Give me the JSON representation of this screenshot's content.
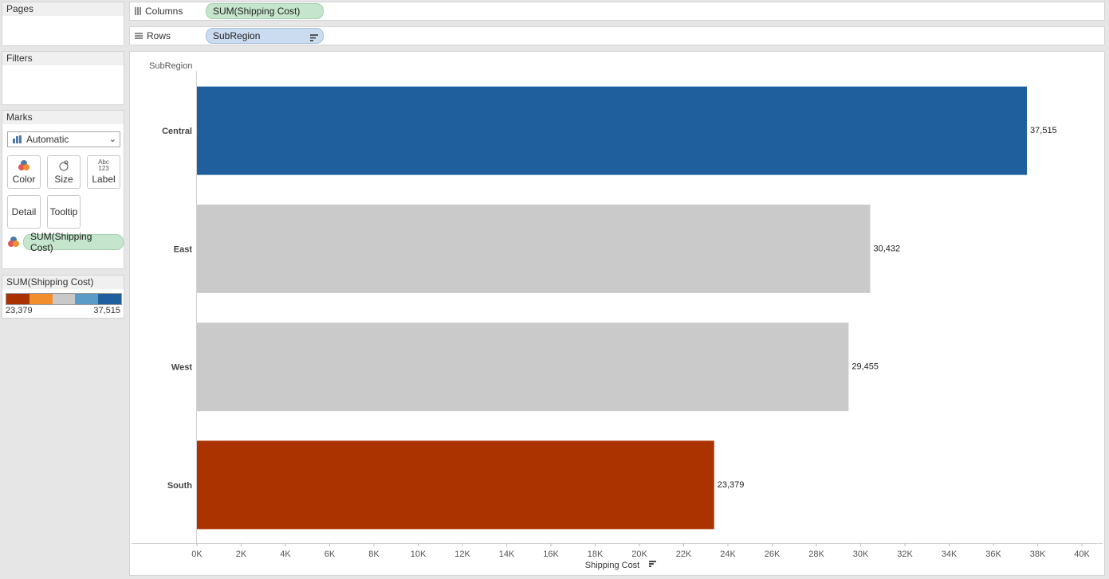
{
  "panels": {
    "pages_title": "Pages",
    "filters_title": "Filters",
    "marks_title": "Marks"
  },
  "marks": {
    "type": "Automatic",
    "buttons": {
      "color": "Color",
      "size": "Size",
      "label": "Label",
      "label_icon_top": "Abc",
      "label_icon_bottom": "123",
      "detail": "Detail",
      "tooltip": "Tooltip"
    },
    "color_pill": "SUM(Shipping Cost)"
  },
  "legend": {
    "title": "SUM(Shipping Cost)",
    "min": "23,379",
    "max": "37,515",
    "colors": [
      "#a83300",
      "#f28e2b",
      "#c9c9c9",
      "#5b9bc8",
      "#1f5f9e"
    ]
  },
  "shelves": {
    "columns_label": "Columns",
    "columns_pill": "SUM(Shipping Cost)",
    "rows_label": "Rows",
    "rows_pill": "SubRegion"
  },
  "chart_data": {
    "type": "bar",
    "orientation": "horizontal",
    "row_header": "SubRegion",
    "xlabel": "Shipping Cost",
    "categories": [
      "Central",
      "East",
      "West",
      "South"
    ],
    "values": [
      37515,
      30432,
      29455,
      23379
    ],
    "value_labels": [
      "37,515",
      "30,432",
      "29,455",
      "23,379"
    ],
    "bar_colors": [
      "#1f5f9e",
      "#cacaca",
      "#cacaca",
      "#ab3300"
    ],
    "xlim": [
      0,
      40000
    ],
    "xticks": [
      0,
      2000,
      4000,
      6000,
      8000,
      10000,
      12000,
      14000,
      16000,
      18000,
      20000,
      22000,
      24000,
      26000,
      28000,
      30000,
      32000,
      34000,
      36000,
      38000,
      40000
    ],
    "xtick_labels": [
      "0K",
      "2K",
      "4K",
      "6K",
      "8K",
      "10K",
      "12K",
      "14K",
      "16K",
      "18K",
      "20K",
      "22K",
      "24K",
      "26K",
      "28K",
      "30K",
      "32K",
      "34K",
      "36K",
      "38K",
      "40K"
    ]
  }
}
